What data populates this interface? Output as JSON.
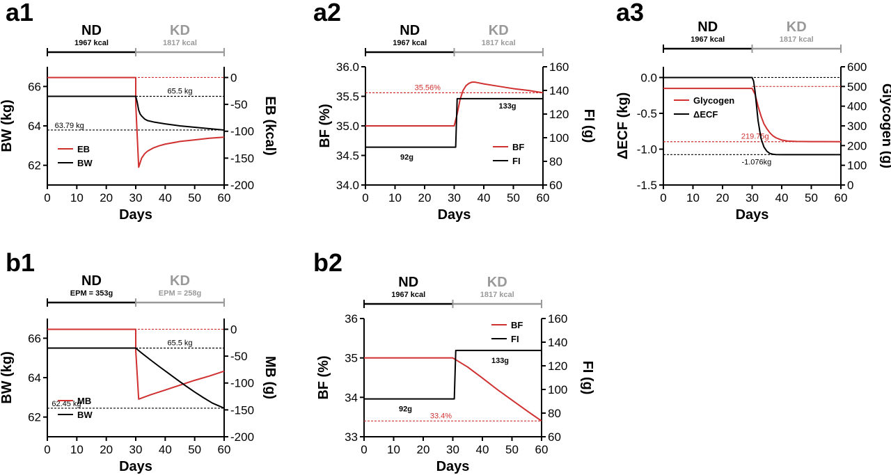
{
  "colors": {
    "red": "#d03030",
    "black": "#000000",
    "gray": "#999999"
  },
  "chart_data": [
    {
      "id": "a1",
      "type": "line",
      "label": "a1",
      "phase": {
        "nd_title": "ND",
        "nd_sub": "1967 kcal",
        "kd_title": "KD",
        "kd_sub": "1817 kcal",
        "switch_day": 30
      },
      "xlabel": "Days",
      "xlim": [
        0,
        60
      ],
      "xticks": [
        "0",
        "10",
        "20",
        "30",
        "40",
        "50",
        "60"
      ],
      "yleft": {
        "label": "BW (kg)",
        "lim": [
          61,
          67
        ],
        "ticks": [
          62,
          64,
          66
        ],
        "tick_labels": [
          "62",
          "64",
          "66"
        ]
      },
      "yright": {
        "label": "EB (kcal)",
        "lim": [
          -200,
          20
        ],
        "ticks": [
          -200,
          -150,
          -100,
          -50,
          0
        ],
        "tick_labels": [
          "-200",
          "-150",
          "-100",
          "-50",
          "0"
        ]
      },
      "series": [
        {
          "name": "EB",
          "axis": "right",
          "color": "red",
          "x": [
            0,
            30,
            30.01,
            31,
            32,
            33,
            34,
            36,
            38,
            40,
            45,
            50,
            55,
            60
          ],
          "y": [
            0,
            0,
            -50,
            -167,
            -150,
            -142,
            -137,
            -131,
            -127,
            -124,
            -119,
            -116,
            -113,
            -111
          ]
        },
        {
          "name": "BW",
          "axis": "left",
          "color": "black",
          "x": [
            0,
            30,
            30.5,
            31,
            31.5,
            32,
            33,
            34,
            36,
            38,
            40,
            45,
            50,
            55,
            60
          ],
          "y": [
            65.5,
            65.5,
            65.2,
            64.8,
            64.6,
            64.5,
            64.35,
            64.27,
            64.2,
            64.15,
            64.1,
            64.0,
            63.93,
            63.86,
            63.79
          ]
        }
      ],
      "reflines": [
        {
          "axis": "right",
          "value": 0,
          "color": "red"
        },
        {
          "axis": "left",
          "value": 65.5,
          "color": "black",
          "x_from": 30,
          "text": "65.5 kg",
          "text_x": 45,
          "text_dy": -4,
          "anchor": "middle"
        },
        {
          "axis": "left",
          "value": 63.79,
          "color": "black",
          "text": "63.79 kg",
          "text_x": 2.5,
          "text_dy": -3,
          "anchor": "start"
        }
      ],
      "legend": {
        "items": [
          "EB",
          "BW"
        ],
        "placement": "bottom-left"
      }
    },
    {
      "id": "a2",
      "type": "line",
      "label": "a2",
      "phase": {
        "nd_title": "ND",
        "nd_sub": "1967 kcal",
        "kd_title": "KD",
        "kd_sub": "1817 kcal",
        "switch_day": 30
      },
      "xlabel": "Days",
      "xlim": [
        0,
        60
      ],
      "xticks": [
        "0",
        "10",
        "20",
        "30",
        "40",
        "50",
        "60"
      ],
      "yleft": {
        "label": "BF (%)",
        "lim": [
          34,
          36
        ],
        "ticks": [
          34,
          34.5,
          35,
          35.5,
          36
        ],
        "tick_labels": [
          "34.0",
          "34.5",
          "35.0",
          "35.5",
          "36.0"
        ]
      },
      "yright": {
        "label": "FI (g)",
        "lim": [
          60,
          160
        ],
        "ticks": [
          60,
          80,
          100,
          120,
          140,
          160
        ],
        "tick_labels": [
          "60",
          "80",
          "100",
          "120",
          "140",
          "160"
        ]
      },
      "series": [
        {
          "name": "BF",
          "axis": "left",
          "color": "red",
          "x": [
            0,
            30,
            31,
            32,
            33,
            34,
            35,
            36,
            37,
            38,
            40,
            45,
            50,
            55,
            60
          ],
          "y": [
            35.0,
            35.0,
            35.2,
            35.45,
            35.6,
            35.68,
            35.72,
            35.74,
            35.74,
            35.73,
            35.71,
            35.67,
            35.63,
            35.6,
            35.56
          ]
        },
        {
          "name": "FI",
          "axis": "right",
          "color": "black",
          "x": [
            0,
            30.5,
            31,
            60
          ],
          "y": [
            92,
            92,
            133,
            133
          ]
        }
      ],
      "reflines": [
        {
          "axis": "left",
          "value": 35.56,
          "color": "red",
          "text": "35.56%",
          "text_x": 21,
          "text_dy": -4,
          "anchor": "middle"
        }
      ],
      "annotations": [
        {
          "text": "92g",
          "x": 14,
          "axis": "right",
          "y": 92,
          "dy": 18,
          "color": "black",
          "bold": true
        },
        {
          "text": "133g",
          "x": 48,
          "axis": "right",
          "y": 133,
          "dy": 14,
          "color": "black",
          "bold": true
        }
      ],
      "legend": {
        "items": [
          "BF",
          "FI"
        ],
        "placement": "bottom-right"
      }
    },
    {
      "id": "a3",
      "type": "line",
      "label": "a3",
      "phase": {
        "nd_title": "ND",
        "nd_sub": "1967 kcal",
        "kd_title": "KD",
        "kd_sub": "1817 kcal",
        "switch_day": 30
      },
      "xlabel": "Days",
      "xlim": [
        0,
        60
      ],
      "xticks": [
        "0",
        "10",
        "20",
        "30",
        "40",
        "50",
        "60"
      ],
      "yleft": {
        "label": "ΔECF (kg)",
        "lim": [
          -1.5,
          0.15
        ],
        "ticks": [
          -1.5,
          -1.0,
          -0.5,
          0.0
        ],
        "tick_labels": [
          "-1.5",
          "-1.0",
          "-0.5",
          "0.0"
        ]
      },
      "yright": {
        "label": "Glycogen (g)",
        "lim": [
          0,
          600
        ],
        "ticks": [
          0,
          100,
          200,
          300,
          400,
          500,
          600
        ],
        "tick_labels": [
          "0",
          "100",
          "200",
          "300",
          "400",
          "500",
          "600"
        ]
      },
      "series": [
        {
          "name": "Glycogen",
          "axis": "right",
          "color": "red",
          "x": [
            0,
            30,
            31,
            32,
            33,
            34,
            35,
            36,
            37,
            38,
            40,
            42,
            45,
            50,
            55,
            60
          ],
          "y": [
            490,
            490,
            460,
            400,
            350,
            310,
            285,
            265,
            250,
            240,
            228,
            223,
            221,
            220,
            220,
            219.75
          ]
        },
        {
          "name": "ΔECF",
          "axis": "left",
          "color": "black",
          "x": [
            0,
            30,
            30.5,
            31,
            32,
            33,
            34,
            35,
            36,
            37,
            38,
            40,
            45,
            50,
            60
          ],
          "y": [
            0,
            0,
            -0.05,
            -0.2,
            -0.6,
            -0.85,
            -0.97,
            -1.03,
            -1.06,
            -1.07,
            -1.075,
            -1.076,
            -1.076,
            -1.076,
            -1.076
          ]
        }
      ],
      "reflines": [
        {
          "axis": "left",
          "value": 0,
          "color": "black"
        },
        {
          "axis": "right",
          "value": 500,
          "color": "red",
          "x_from": 30
        },
        {
          "axis": "right",
          "value": 219.75,
          "color": "red",
          "text": "219.75g",
          "text_x": 31,
          "text_dy": -4,
          "anchor": "middle"
        },
        {
          "axis": "left",
          "value": -1.076,
          "color": "black",
          "text": "-1.076kg",
          "text_x": 31.5,
          "text_dy": 14,
          "anchor": "middle"
        }
      ],
      "legend": {
        "items": [
          "Glycogen",
          "ΔECF"
        ],
        "placement": "top-left"
      }
    },
    {
      "id": "b1",
      "type": "line",
      "label": "b1",
      "phase": {
        "nd_title": "ND",
        "nd_sub": "EPM = 353g",
        "kd_title": "KD",
        "kd_sub": "EPM = 258g",
        "switch_day": 30
      },
      "xlabel": "Days",
      "xlim": [
        0,
        60
      ],
      "xticks": [
        "0",
        "10",
        "20",
        "30",
        "40",
        "50",
        "60"
      ],
      "yleft": {
        "label": "BW (kg)",
        "lim": [
          61,
          67
        ],
        "ticks": [
          62,
          64,
          66
        ],
        "tick_labels": [
          "62",
          "64",
          "66"
        ]
      },
      "yright": {
        "label": "MB (g)",
        "lim": [
          -200,
          20
        ],
        "ticks": [
          -200,
          -150,
          -100,
          -50,
          0
        ],
        "tick_labels": [
          "-200",
          "-150",
          "-100",
          "-50",
          "0"
        ]
      },
      "series": [
        {
          "name": "MB",
          "axis": "right",
          "color": "red",
          "x": [
            0,
            30,
            30.01,
            31,
            35,
            40,
            45,
            50,
            55,
            60
          ],
          "y": [
            0,
            0,
            -40,
            -130,
            -122,
            -113,
            -104,
            -95,
            -87,
            -78
          ]
        },
        {
          "name": "BW",
          "axis": "left",
          "color": "black",
          "x": [
            0,
            30,
            32,
            35,
            38,
            41,
            44,
            47,
            50,
            53,
            56,
            60
          ],
          "y": [
            65.5,
            65.5,
            65.25,
            64.9,
            64.56,
            64.23,
            63.9,
            63.58,
            63.27,
            62.98,
            62.71,
            62.45
          ]
        }
      ],
      "reflines": [
        {
          "axis": "right",
          "value": 0,
          "color": "red"
        },
        {
          "axis": "left",
          "value": 65.5,
          "color": "black",
          "x_from": 30,
          "text": "65.5 kg",
          "text_x": 45,
          "text_dy": -4,
          "anchor": "middle"
        },
        {
          "axis": "left",
          "value": 62.45,
          "color": "black",
          "text": "62.45 kg",
          "text_x": 1.5,
          "text_dy": -3,
          "anchor": "start"
        }
      ],
      "legend": {
        "items": [
          "MB",
          "BW"
        ],
        "placement": "bottom-left"
      }
    },
    {
      "id": "b2",
      "type": "line",
      "label": "b2",
      "phase": {
        "nd_title": "ND",
        "nd_sub": "1967 kcal",
        "kd_title": "KD",
        "kd_sub": "1817 kcal",
        "switch_day": 30
      },
      "xlabel": "Days",
      "xlim": [
        0,
        60
      ],
      "xticks": [
        "0",
        "10",
        "20",
        "30",
        "40",
        "50",
        "60"
      ],
      "yleft": {
        "label": "BF (%)",
        "lim": [
          33,
          36
        ],
        "ticks": [
          33,
          34,
          35,
          36
        ],
        "tick_labels": [
          "33",
          "34",
          "35",
          "36"
        ]
      },
      "yright": {
        "label": "FI (g)",
        "lim": [
          60,
          160
        ],
        "ticks": [
          60,
          80,
          100,
          120,
          140,
          160
        ],
        "tick_labels": [
          "60",
          "80",
          "100",
          "120",
          "140",
          "160"
        ]
      },
      "series": [
        {
          "name": "BF",
          "axis": "left",
          "color": "red",
          "x": [
            0,
            30,
            35,
            40,
            45,
            50,
            55,
            60
          ],
          "y": [
            35.0,
            35.0,
            34.77,
            34.49,
            34.2,
            33.93,
            33.66,
            33.4
          ]
        },
        {
          "name": "FI",
          "axis": "right",
          "color": "black",
          "x": [
            0,
            30.5,
            31,
            60
          ],
          "y": [
            92,
            92,
            133,
            133
          ]
        }
      ],
      "reflines": [
        {
          "axis": "left",
          "value": 33.4,
          "color": "red",
          "text": "33.4%",
          "text_x": 26,
          "text_dy": -4,
          "anchor": "middle"
        }
      ],
      "annotations": [
        {
          "text": "92g",
          "x": 14,
          "axis": "right",
          "y": 92,
          "dy": 18,
          "color": "black",
          "bold": true
        },
        {
          "text": "133g",
          "x": 46,
          "axis": "right",
          "y": 133,
          "dy": 18,
          "color": "black",
          "bold": true
        }
      ],
      "legend": {
        "items": [
          "BF",
          "FI"
        ],
        "placement": "top-right"
      }
    }
  ]
}
